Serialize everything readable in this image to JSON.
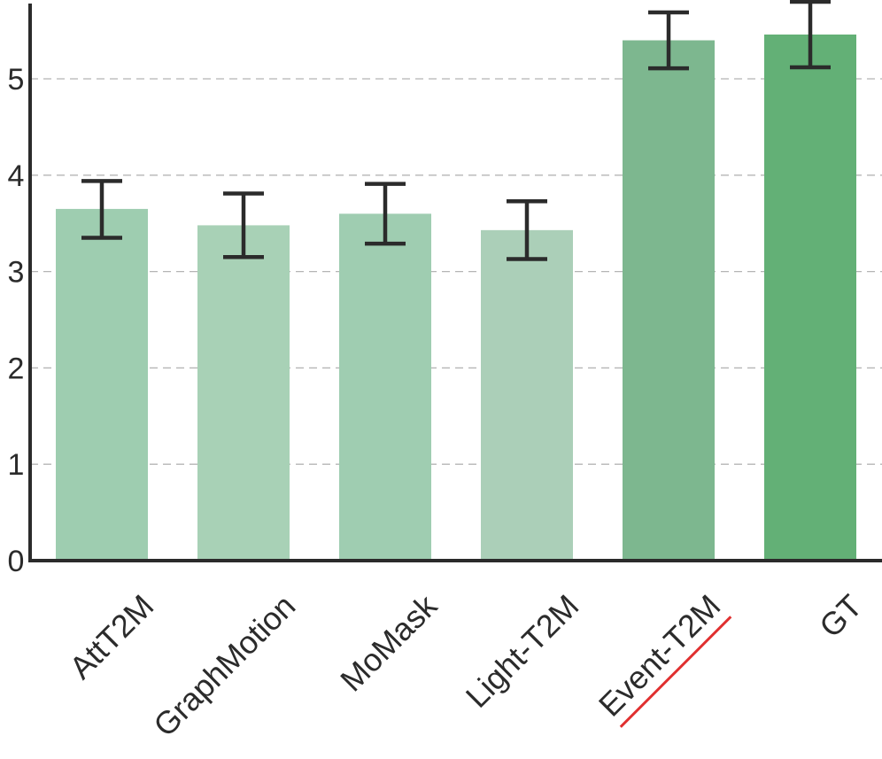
{
  "chart_data": {
    "type": "bar",
    "title": "",
    "xlabel": "",
    "ylabel": "",
    "categories": [
      "AttT2M",
      "GraphMotion",
      "MoMask",
      "Light-T2M",
      "Event-T2M",
      "GT"
    ],
    "values": [
      3.65,
      3.48,
      3.6,
      3.43,
      5.4,
      5.46
    ],
    "error_low": [
      3.35,
      3.15,
      3.29,
      3.13,
      5.11,
      5.12
    ],
    "error_high": [
      3.94,
      3.81,
      3.91,
      3.73,
      5.69,
      5.8
    ],
    "bar_colors": [
      "#9ecdb0",
      "#a8d1b6",
      "#9fcdb1",
      "#abcfb8",
      "#7db78f",
      "#63b076"
    ],
    "highlight_category": "Event-T2M",
    "highlight_underline_color": "#e03030",
    "ylim": [
      0,
      5.8
    ],
    "yticks": [
      0,
      1,
      2,
      3,
      4,
      5
    ],
    "grid": "y-dashed",
    "legend": "none"
  }
}
